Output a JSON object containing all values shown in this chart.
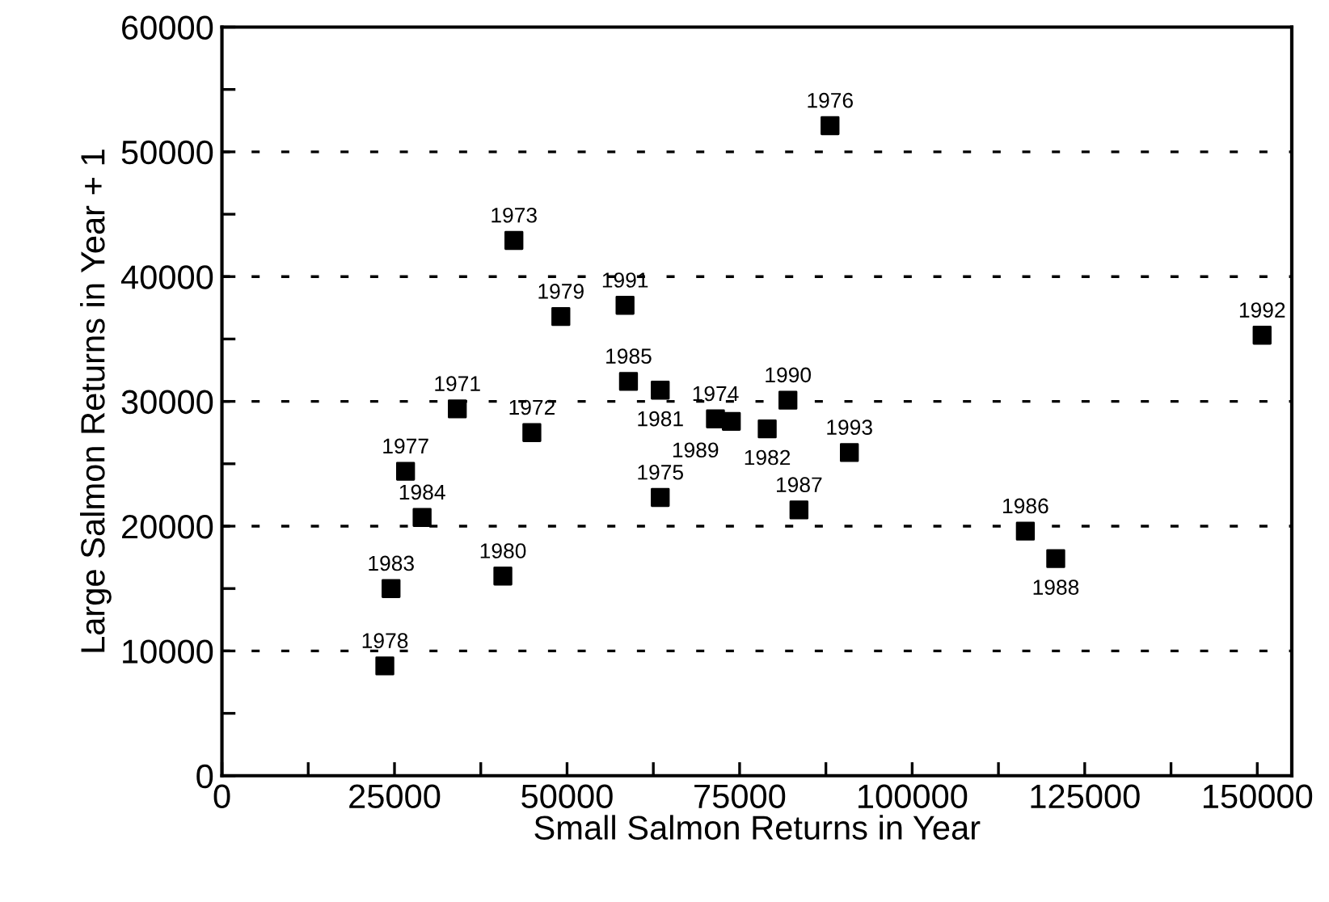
{
  "chart_data": {
    "type": "scatter",
    "xlabel": "Small Salmon Returns in Year",
    "ylabel": "Large Salmon Returns in Year + 1",
    "xlim": [
      0,
      155000
    ],
    "ylim": [
      0,
      60000
    ],
    "xticks": [
      0,
      {
        "value": 12500,
        "label": null
      },
      25000,
      {
        "value": 37500,
        "label": null
      },
      50000,
      {
        "value": 62500,
        "label": null
      },
      75000,
      {
        "value": 87500,
        "label": null
      },
      100000,
      {
        "value": 112500,
        "label": null
      },
      125000,
      {
        "value": 137500,
        "label": null
      },
      150000
    ],
    "yticks": [
      0,
      {
        "value": 5000,
        "label": null
      },
      10000,
      {
        "value": 15000,
        "label": null
      },
      20000,
      {
        "value": 25000,
        "label": null
      },
      30000,
      {
        "value": 35000,
        "label": null
      },
      40000,
      {
        "value": 45000,
        "label": null
      },
      50000,
      {
        "value": 55000,
        "label": null
      },
      60000
    ],
    "grid": "y",
    "marker": "square",
    "series": [
      {
        "color": "#000000",
        "x": [
          34100,
          44900,
          42300,
          71500,
          63500,
          88100,
          26600,
          23600,
          49100,
          40700,
          63500,
          79000,
          24500,
          29000,
          58900,
          116400,
          83600,
          120800,
          73800,
          82000,
          58400,
          150700,
          90900
        ],
        "values": [
          29400,
          27500,
          42900,
          28600,
          22300,
          52100,
          24400,
          8800,
          36800,
          16000,
          30900,
          27800,
          15000,
          20700,
          31600,
          19600,
          21300,
          17400,
          28400,
          30100,
          37700,
          35300,
          25900
        ]
      }
    ],
    "annotations": [
      {
        "text": "1971",
        "x": 34100,
        "y": 29400
      },
      {
        "text": "1972",
        "x": 44900,
        "y": 27500
      },
      {
        "text": "1973",
        "x": 42300,
        "y": 42900
      },
      {
        "text": "1974",
        "x": 71500,
        "y": 28600
      },
      {
        "text": "1975",
        "x": 63500,
        "y": 22300
      },
      {
        "text": "1976",
        "x": 88100,
        "y": 52100
      },
      {
        "text": "1977",
        "x": 26600,
        "y": 24400
      },
      {
        "text": "1978",
        "x": 23600,
        "y": 8800
      },
      {
        "text": "1979",
        "x": 49100,
        "y": 36800
      },
      {
        "text": "1980",
        "x": 40700,
        "y": 16000
      },
      {
        "text": "1981",
        "x": 63500,
        "y": 30900
      },
      {
        "text": "1982",
        "x": 79000,
        "y": 27800
      },
      {
        "text": "1983",
        "x": 24500,
        "y": 15000
      },
      {
        "text": "1984",
        "x": 29000,
        "y": 20700
      },
      {
        "text": "1985",
        "x": 58900,
        "y": 31600
      },
      {
        "text": "1986",
        "x": 116400,
        "y": 19600
      },
      {
        "text": "1987",
        "x": 83600,
        "y": 21300
      },
      {
        "text": "1988",
        "x": 120800,
        "y": 17400
      },
      {
        "text": "1989",
        "x": 73800,
        "y": 28400
      },
      {
        "text": "1990",
        "x": 82000,
        "y": 30100
      },
      {
        "text": "1991",
        "x": 58400,
        "y": 37700
      },
      {
        "text": "1992",
        "x": 150700,
        "y": 35300
      },
      {
        "text": "1993",
        "x": 90900,
        "y": 25900
      }
    ]
  }
}
